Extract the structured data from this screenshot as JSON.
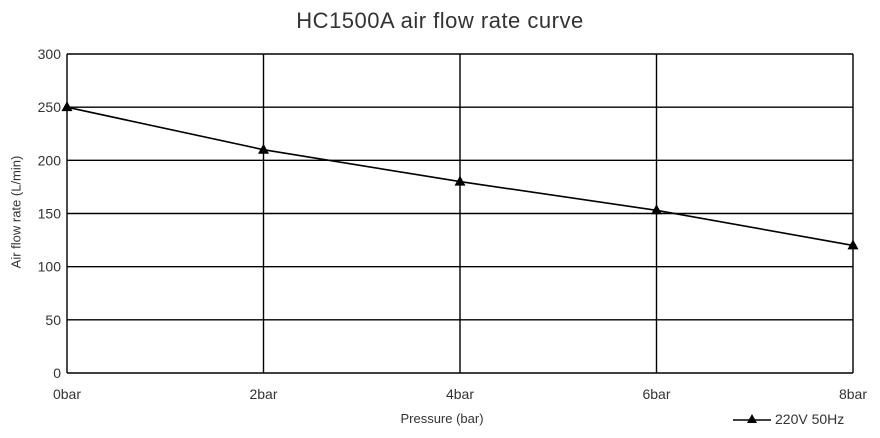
{
  "chart_data": {
    "type": "line",
    "title": "HC1500A air flow rate curve",
    "xlabel": "Pressure (bar)",
    "ylabel": "Air flow rate (L/min)",
    "categories": [
      "0bar",
      "2bar",
      "4bar",
      "6bar",
      "8bar"
    ],
    "x": [
      0,
      2,
      4,
      6,
      8
    ],
    "xlim": [
      0,
      8
    ],
    "ylim": [
      0,
      300
    ],
    "yticks": [
      0,
      50,
      100,
      150,
      200,
      250,
      300
    ],
    "grid": true,
    "legend_position": "bottom-right",
    "marker": "triangle",
    "series": [
      {
        "name": "220V 50Hz",
        "values": [
          250,
          210,
          180,
          153,
          120
        ],
        "color": "#000000"
      }
    ]
  }
}
